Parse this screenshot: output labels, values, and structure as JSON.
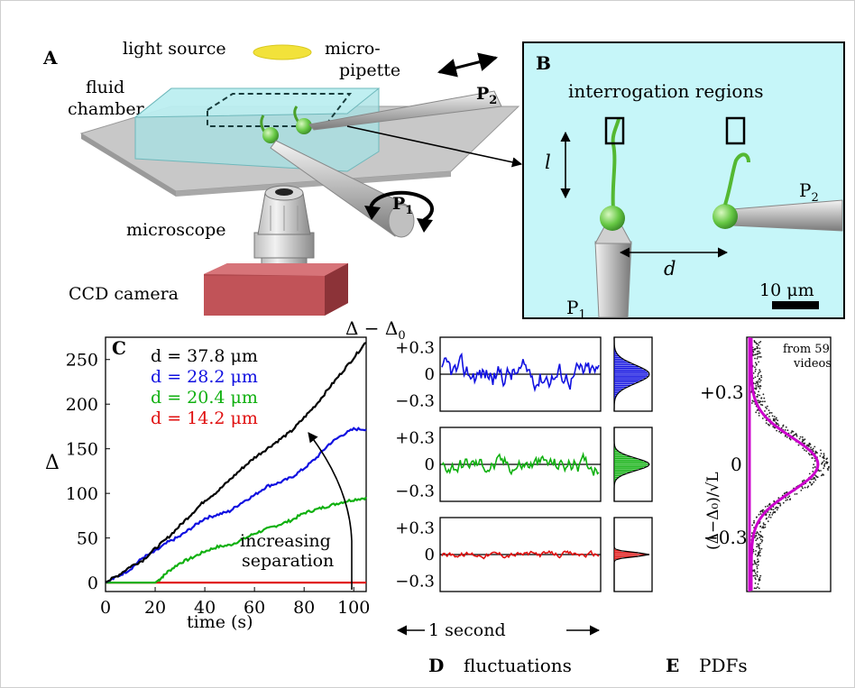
{
  "panelA": {
    "letter": "A",
    "light_source": "light source",
    "fluid": "fluid",
    "chamber": "chamber",
    "micro": "micro-",
    "pipette": "pipette",
    "p2": "P",
    "p2_sub": "2",
    "p1": "P",
    "p1_sub": "1",
    "microscope": "microscope",
    "ccd": "CCD camera"
  },
  "panelB": {
    "letter": "B",
    "interrogation": "interrogation regions",
    "l": "l",
    "d": "d",
    "p2": "P",
    "p2_sub": "2",
    "p1": "P",
    "p1_sub": "1",
    "scale": "10 μm",
    "bg_color": "#c6f6f9"
  },
  "panelC": {
    "letter": "C",
    "ylabel": "Δ",
    "xlabel": "time (s)",
    "annotation_line1": "increasing",
    "annotation_line2": "separation",
    "legend": [
      {
        "label": "d = 37.8 μm",
        "color": "#000000"
      },
      {
        "label": "d = 28.2 μm",
        "color": "#1010e0"
      },
      {
        "label": "d = 20.4 μm",
        "color": "#10b010"
      },
      {
        "label": "d = 14.2 μm",
        "color": "#e01010"
      }
    ]
  },
  "panelD": {
    "letter": "D",
    "title": "fluctuations",
    "ylabel": "Δ − Δ",
    "ylabel_sub": "0",
    "second_label": "1 second",
    "ticks": [
      "+0.3",
      "0",
      "−0.3"
    ]
  },
  "panelE": {
    "letter": "E",
    "title": "PDFs",
    "from_line1": "from 59",
    "from_line2": "videos",
    "ylabel": "(Δ−Δ₀)/√L",
    "ticks": [
      "+0.3",
      "0",
      "−0.3"
    ],
    "curve_color": "#cc00cc"
  },
  "chart_data": {
    "type": "line",
    "title": "",
    "xlabel": "time (s)",
    "ylabel": "Δ",
    "xlim": [
      0,
      105
    ],
    "ylim": [
      -10,
      275
    ],
    "xticks": [
      0,
      20,
      40,
      60,
      80,
      100
    ],
    "yticks": [
      0,
      50,
      100,
      150,
      200,
      250
    ],
    "series": [
      {
        "name": "d = 37.8 μm",
        "color": "#000000",
        "x": [
          0,
          5,
          10,
          15,
          20,
          25,
          30,
          35,
          40,
          45,
          50,
          55,
          60,
          65,
          70,
          75,
          80,
          85,
          90,
          95,
          100,
          105
        ],
        "y": [
          0,
          8,
          18,
          25,
          38,
          50,
          64,
          78,
          92,
          102,
          115,
          128,
          140,
          150,
          160,
          170,
          185,
          200,
          218,
          235,
          252,
          270
        ]
      },
      {
        "name": "d = 28.2 μm",
        "color": "#1010e0",
        "x": [
          0,
          5,
          10,
          15,
          20,
          25,
          30,
          35,
          40,
          45,
          50,
          55,
          60,
          65,
          70,
          75,
          80,
          85,
          90,
          95,
          100,
          105
        ],
        "y": [
          0,
          7,
          15,
          28,
          35,
          45,
          52,
          62,
          72,
          76,
          80,
          90,
          98,
          108,
          112,
          118,
          128,
          140,
          155,
          165,
          172,
          172
        ]
      },
      {
        "name": "d = 20.4 μm",
        "color": "#10b010",
        "x": [
          0,
          15,
          20,
          22,
          25,
          30,
          35,
          40,
          45,
          50,
          55,
          60,
          65,
          70,
          75,
          80,
          85,
          90,
          95,
          100,
          105
        ],
        "y": [
          0,
          0,
          0,
          4,
          12,
          22,
          28,
          35,
          40,
          42,
          48,
          55,
          60,
          65,
          70,
          78,
          82,
          86,
          90,
          93,
          95
        ]
      },
      {
        "name": "d = 14.2 μm",
        "color": "#e01010",
        "x": [
          0,
          105
        ],
        "y": [
          0,
          0
        ]
      }
    ]
  }
}
